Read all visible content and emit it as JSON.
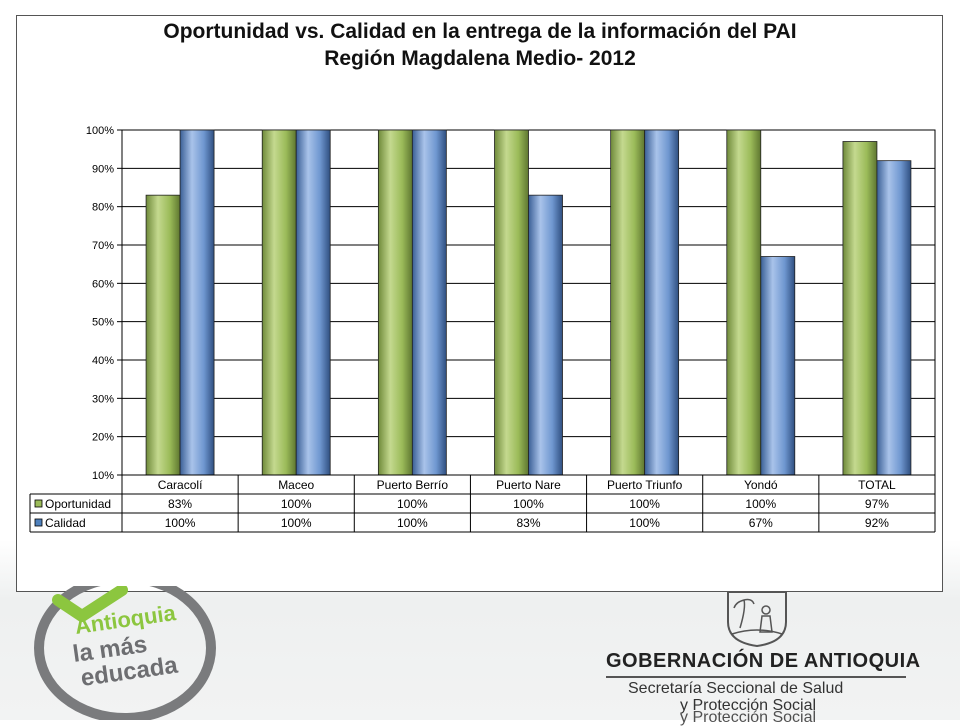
{
  "chart_data": {
    "type": "bar",
    "title": "Oportunidad vs. Calidad en la entrega de la información del PAI",
    "subtitle": "Región Magdalena Medio- 2012",
    "categories": [
      "Caracolí",
      "Maceo",
      "Puerto Berrío",
      "Puerto Nare",
      "Puerto Triunfo",
      "Yondó",
      "TOTAL"
    ],
    "series": [
      {
        "name": "Oportunidad",
        "values": [
          83,
          100,
          100,
          100,
          100,
          100,
          97
        ],
        "labels": [
          "83%",
          "100%",
          "100%",
          "100%",
          "100%",
          "100%",
          "97%"
        ],
        "color": "#9BBB59"
      },
      {
        "name": "Calidad",
        "values": [
          100,
          100,
          100,
          83,
          100,
          67,
          92
        ],
        "labels": [
          "100%",
          "100%",
          "100%",
          "83%",
          "100%",
          "67%",
          "92%"
        ],
        "color": "#4F81BD"
      }
    ],
    "ylim": [
      10,
      100
    ],
    "yticks": [
      "10%",
      "20%",
      "30%",
      "40%",
      "50%",
      "60%",
      "70%",
      "80%",
      "90%",
      "100%"
    ],
    "grid": true,
    "legend": "data-table"
  },
  "branding": {
    "slogan_line_1": "Antioquia",
    "slogan_line_2": "la más",
    "slogan_line_3": "educada",
    "government": "GOBERNACIÓN DE ANTIOQUIA",
    "secretariat_line_1": "Secretaría Seccional de Salud",
    "secretariat_line_2": "y Protección Social",
    "accent_green": "#8CC63F",
    "logo_gray": "#6D6E71"
  }
}
